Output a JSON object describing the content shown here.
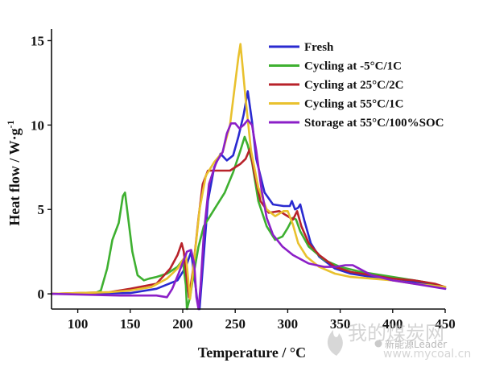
{
  "chart_data": {
    "type": "line",
    "xlabel": "Temperature / °C",
    "ylabel": "Heat flow / W·g",
    "ylabel_superscript": "-1",
    "xlim": [
      75,
      450
    ],
    "ylim": [
      -0.9,
      15.5
    ],
    "xticks": [
      100,
      150,
      200,
      250,
      300,
      350,
      400,
      450
    ],
    "yticks": [
      0,
      5,
      10,
      15
    ],
    "legend_position": "top-right",
    "series": [
      {
        "name": "Fresh",
        "color": "#2a2ad0",
        "points": [
          [
            75,
            0
          ],
          [
            150,
            0.05
          ],
          [
            175,
            0.3
          ],
          [
            195,
            0.8
          ],
          [
            203,
            1.6
          ],
          [
            208,
            2.5
          ],
          [
            212,
            0.6
          ],
          [
            214,
            -0.5
          ],
          [
            216,
            -0.9
          ],
          [
            219,
            1.5
          ],
          [
            224,
            5.5
          ],
          [
            230,
            7.5
          ],
          [
            236,
            8.3
          ],
          [
            242,
            7.9
          ],
          [
            248,
            8.2
          ],
          [
            253,
            9.3
          ],
          [
            258,
            10.6
          ],
          [
            262,
            12.0
          ],
          [
            266,
            10.2
          ],
          [
            270,
            8.0
          ],
          [
            278,
            6.0
          ],
          [
            286,
            5.3
          ],
          [
            296,
            5.2
          ],
          [
            302,
            5.2
          ],
          [
            304,
            5.5
          ],
          [
            307,
            5.0
          ],
          [
            310,
            5.1
          ],
          [
            312,
            5.3
          ],
          [
            316,
            4.3
          ],
          [
            322,
            3.0
          ],
          [
            330,
            2.2
          ],
          [
            345,
            1.5
          ],
          [
            360,
            1.2
          ],
          [
            380,
            1.0
          ],
          [
            400,
            0.8
          ],
          [
            420,
            0.7
          ],
          [
            440,
            0.5
          ],
          [
            450,
            0.3
          ]
        ]
      },
      {
        "name": "Cycling at -5°C/1C",
        "color": "#3eb030",
        "points": [
          [
            75,
            0
          ],
          [
            115,
            0
          ],
          [
            122,
            0.2
          ],
          [
            128,
            1.5
          ],
          [
            133,
            3.2
          ],
          [
            139,
            4.2
          ],
          [
            143,
            5.8
          ],
          [
            145,
            6.0
          ],
          [
            148,
            4.5
          ],
          [
            152,
            2.5
          ],
          [
            157,
            1.1
          ],
          [
            163,
            0.8
          ],
          [
            168,
            0.9
          ],
          [
            175,
            1.0
          ],
          [
            185,
            1.2
          ],
          [
            195,
            1.6
          ],
          [
            200,
            2.0
          ],
          [
            203,
            0.5
          ],
          [
            204,
            -0.9
          ],
          [
            207,
            -0.2
          ],
          [
            210,
            1.0
          ],
          [
            215,
            2.8
          ],
          [
            220,
            4.0
          ],
          [
            230,
            5.0
          ],
          [
            240,
            6.0
          ],
          [
            248,
            7.2
          ],
          [
            255,
            8.5
          ],
          [
            259,
            9.3
          ],
          [
            262,
            8.8
          ],
          [
            266,
            7.8
          ],
          [
            272,
            5.5
          ],
          [
            280,
            4.0
          ],
          [
            288,
            3.2
          ],
          [
            295,
            3.4
          ],
          [
            300,
            3.9
          ],
          [
            305,
            4.5
          ],
          [
            308,
            4.4
          ],
          [
            312,
            3.7
          ],
          [
            320,
            2.8
          ],
          [
            335,
            2.0
          ],
          [
            350,
            1.6
          ],
          [
            370,
            1.3
          ],
          [
            390,
            1.1
          ],
          [
            410,
            0.9
          ],
          [
            430,
            0.7
          ],
          [
            450,
            0.4
          ]
        ]
      },
      {
        "name": "Cycling at 25°C/2C",
        "color": "#b8222a",
        "points": [
          [
            75,
            0
          ],
          [
            130,
            0.1
          ],
          [
            150,
            0.3
          ],
          [
            175,
            0.6
          ],
          [
            188,
            1.5
          ],
          [
            195,
            2.3
          ],
          [
            199,
            3.0
          ],
          [
            201,
            2.5
          ],
          [
            204,
            0.8
          ],
          [
            206,
            -0.2
          ],
          [
            210,
            1.5
          ],
          [
            215,
            4.5
          ],
          [
            219,
            6.5
          ],
          [
            224,
            7.3
          ],
          [
            235,
            7.3
          ],
          [
            245,
            7.3
          ],
          [
            255,
            7.7
          ],
          [
            260,
            8.0
          ],
          [
            264,
            8.6
          ],
          [
            268,
            7.2
          ],
          [
            274,
            5.5
          ],
          [
            282,
            4.8
          ],
          [
            292,
            4.9
          ],
          [
            300,
            4.6
          ],
          [
            305,
            4.4
          ],
          [
            309,
            4.9
          ],
          [
            313,
            4.0
          ],
          [
            320,
            3.0
          ],
          [
            330,
            2.3
          ],
          [
            345,
            1.6
          ],
          [
            360,
            1.3
          ],
          [
            380,
            1.1
          ],
          [
            400,
            0.9
          ],
          [
            420,
            0.8
          ],
          [
            440,
            0.6
          ],
          [
            450,
            0.4
          ]
        ]
      },
      {
        "name": "Cycling at 55°C/1C",
        "color": "#e9c12e",
        "points": [
          [
            75,
            0
          ],
          [
            130,
            0.1
          ],
          [
            150,
            0.2
          ],
          [
            170,
            0.4
          ],
          [
            185,
            0.9
          ],
          [
            195,
            1.5
          ],
          [
            200,
            2.0
          ],
          [
            203,
            2.3
          ],
          [
            205,
            1.0
          ],
          [
            207,
            -0.3
          ],
          [
            211,
            2.0
          ],
          [
            216,
            5.0
          ],
          [
            222,
            7.0
          ],
          [
            230,
            7.8
          ],
          [
            238,
            8.4
          ],
          [
            245,
            10.0
          ],
          [
            250,
            12.5
          ],
          [
            253,
            14.0
          ],
          [
            255,
            14.8
          ],
          [
            257,
            13.5
          ],
          [
            260,
            11.5
          ],
          [
            265,
            8.5
          ],
          [
            272,
            6.3
          ],
          [
            280,
            5.0
          ],
          [
            288,
            4.6
          ],
          [
            296,
            4.9
          ],
          [
            300,
            4.9
          ],
          [
            305,
            4.1
          ],
          [
            310,
            3.0
          ],
          [
            318,
            2.2
          ],
          [
            330,
            1.6
          ],
          [
            345,
            1.2
          ],
          [
            360,
            1.0
          ],
          [
            380,
            0.9
          ],
          [
            400,
            0.8
          ],
          [
            420,
            0.6
          ],
          [
            450,
            0.4
          ]
        ]
      },
      {
        "name": "Storage at 55°C/100%SOC",
        "color": "#8b1fc7",
        "points": [
          [
            75,
            0
          ],
          [
            140,
            -0.1
          ],
          [
            175,
            -0.1
          ],
          [
            185,
            -0.2
          ],
          [
            190,
            0.3
          ],
          [
            196,
            1.2
          ],
          [
            204,
            2.5
          ],
          [
            208,
            2.6
          ],
          [
            211,
            1.8
          ],
          [
            213,
            -0.2
          ],
          [
            215,
            -0.9
          ],
          [
            217,
            0.5
          ],
          [
            220,
            3.5
          ],
          [
            225,
            6.5
          ],
          [
            232,
            7.8
          ],
          [
            238,
            8.4
          ],
          [
            242,
            9.5
          ],
          [
            246,
            10.1
          ],
          [
            250,
            10.1
          ],
          [
            254,
            9.8
          ],
          [
            258,
            10.0
          ],
          [
            262,
            10.3
          ],
          [
            266,
            10.0
          ],
          [
            270,
            8.5
          ],
          [
            275,
            6.2
          ],
          [
            280,
            4.5
          ],
          [
            286,
            3.5
          ],
          [
            295,
            2.8
          ],
          [
            305,
            2.3
          ],
          [
            320,
            1.8
          ],
          [
            335,
            1.6
          ],
          [
            345,
            1.6
          ],
          [
            355,
            1.7
          ],
          [
            362,
            1.7
          ],
          [
            368,
            1.5
          ],
          [
            380,
            1.1
          ],
          [
            400,
            0.8
          ],
          [
            420,
            0.6
          ],
          [
            440,
            0.4
          ],
          [
            450,
            0.3
          ]
        ]
      }
    ]
  },
  "watermark": {
    "brand_cn": "我的煤炭网",
    "url": "www.mycoal.cn",
    "wechat": "新能源Leader"
  }
}
